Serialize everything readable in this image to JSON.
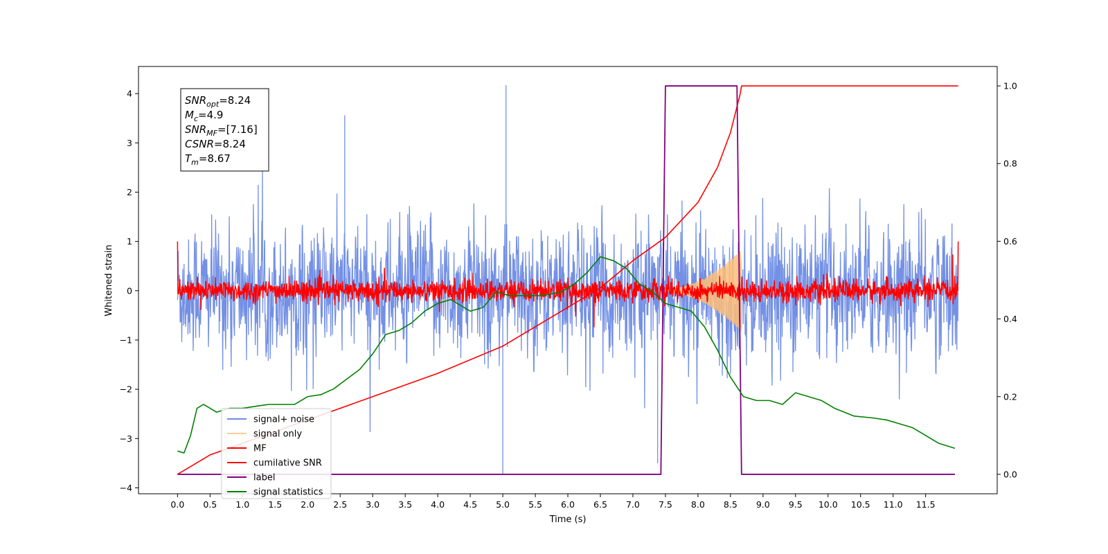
{
  "chart_data": {
    "type": "line",
    "xlabel": "Time (s)",
    "ylabel": "Whitened strain",
    "xlim": [
      -0.6,
      12.6
    ],
    "ylim_left": [
      -4.12,
      4.55
    ],
    "ylim_right": [
      -0.05,
      1.05
    ],
    "x_ticks": [
      "0.0",
      "0.5",
      "1.0",
      "1.5",
      "2.0",
      "2.5",
      "3.0",
      "3.5",
      "4.0",
      "4.5",
      "5.0",
      "5.5",
      "6.0",
      "6.5",
      "7.0",
      "7.5",
      "8.0",
      "8.5",
      "9.0",
      "9.5",
      "10.0",
      "10.5",
      "11.0",
      "11.5"
    ],
    "y_ticks_left": [
      "−4",
      "−3",
      "−2",
      "−1",
      "0",
      "1",
      "2",
      "3",
      "4"
    ],
    "y_ticks_right": [
      "0.0",
      "0.2",
      "0.4",
      "0.6",
      "0.8",
      "1.0"
    ],
    "legend": {
      "position": "lower-left",
      "entries": [
        {
          "label": "signal+ noise",
          "color": "#6c8ae4"
        },
        {
          "label": "signal only",
          "color": "#ffbe78"
        },
        {
          "label": "MF",
          "color": "#ff0000"
        },
        {
          "label": "cumilative SNR",
          "color": "#ff0000"
        },
        {
          "label": "label",
          "color": "#800080"
        },
        {
          "label": "signal statistics",
          "color": "#008000"
        }
      ]
    },
    "annotation": [
      {
        "sym": "SNR",
        "sub": "opt",
        "value": "=8.24"
      },
      {
        "sym": "M",
        "sub": "c",
        "value": "=4.9"
      },
      {
        "sym": "SNR",
        "sub": "MF",
        "value": "=[7.16]"
      },
      {
        "sym": "CSNR",
        "sub": "",
        "value": "=8.24"
      },
      {
        "sym": "T",
        "sub": "m",
        "value": "=8.67"
      }
    ],
    "series": [
      {
        "name": "signal+ noise",
        "axis": "left",
        "color": "#6c8ae4",
        "description": "noisy whitened strain, roughly -2.5 to 2.5 over 0-12 s",
        "x_range": [
          0,
          12
        ],
        "amplitude_sd": 1.0,
        "spikes": [
          [
            5.05,
            4.17
          ],
          [
            5.0,
            -3.72
          ],
          [
            7.38,
            -3.5
          ],
          [
            2.57,
            3.56
          ]
        ]
      },
      {
        "name": "signal only",
        "axis": "left",
        "color": "#ffbe78",
        "chirp": {
          "start": 7.3,
          "end": 8.67,
          "peak_amplitude": 0.85
        }
      },
      {
        "name": "MF",
        "axis": "left",
        "color": "#ff0000",
        "description": "matched filter output around 0, roughly -0.3 to 0.3",
        "x_range": [
          0,
          12
        ],
        "edge_values": [
          1.0,
          1.0
        ]
      },
      {
        "name": "cumilative SNR",
        "axis": "right",
        "color": "#ff0000",
        "x": [
          0.0,
          0.5,
          1.0,
          2.0,
          3.0,
          4.0,
          5.0,
          6.0,
          6.5,
          7.0,
          7.5,
          8.0,
          8.3,
          8.5,
          8.65,
          8.67,
          8.7,
          12.0
        ],
        "y": [
          0.0,
          0.05,
          0.08,
          0.14,
          0.2,
          0.26,
          0.33,
          0.43,
          0.48,
          0.55,
          0.61,
          0.7,
          0.79,
          0.88,
          0.98,
          1.0,
          1.0,
          1.0
        ]
      },
      {
        "name": "label",
        "axis": "right",
        "color": "#800080",
        "x": [
          0.0,
          7.43,
          7.5,
          8.6,
          8.67,
          11.95
        ],
        "y": [
          0.0,
          0.0,
          1.0,
          1.0,
          0.0,
          0.0
        ]
      },
      {
        "name": "signal statistics",
        "axis": "right",
        "color": "#008000",
        "x": [
          0.0,
          0.1,
          0.2,
          0.3,
          0.4,
          0.6,
          0.8,
          1.0,
          1.4,
          1.8,
          2.0,
          2.2,
          2.4,
          2.6,
          2.8,
          3.0,
          3.2,
          3.4,
          3.6,
          3.8,
          4.0,
          4.2,
          4.5,
          4.7,
          4.9,
          5.1,
          5.3,
          5.6,
          5.9,
          6.1,
          6.3,
          6.5,
          6.7,
          6.9,
          7.1,
          7.3,
          7.5,
          7.7,
          7.9,
          8.1,
          8.3,
          8.5,
          8.7,
          8.9,
          9.1,
          9.3,
          9.5,
          9.7,
          9.9,
          10.1,
          10.4,
          10.7,
          10.9,
          11.1,
          11.3,
          11.5,
          11.7,
          11.95
        ],
        "y": [
          0.06,
          0.055,
          0.1,
          0.17,
          0.18,
          0.16,
          0.17,
          0.17,
          0.18,
          0.18,
          0.2,
          0.205,
          0.22,
          0.245,
          0.27,
          0.31,
          0.36,
          0.37,
          0.39,
          0.42,
          0.44,
          0.45,
          0.42,
          0.43,
          0.47,
          0.46,
          0.46,
          0.46,
          0.47,
          0.49,
          0.52,
          0.56,
          0.55,
          0.53,
          0.49,
          0.47,
          0.44,
          0.43,
          0.42,
          0.38,
          0.32,
          0.25,
          0.2,
          0.19,
          0.19,
          0.18,
          0.21,
          0.2,
          0.19,
          0.17,
          0.15,
          0.145,
          0.14,
          0.13,
          0.12,
          0.1,
          0.08,
          0.067
        ]
      }
    ]
  }
}
